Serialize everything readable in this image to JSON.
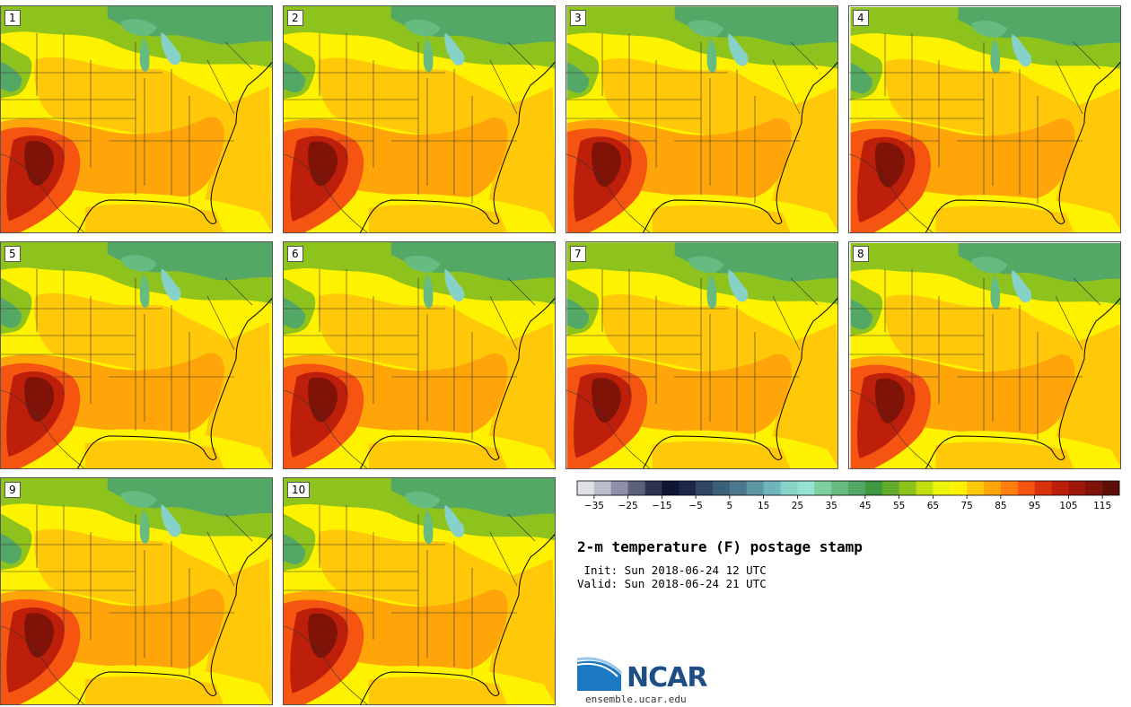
{
  "panels": [
    {
      "label": "1"
    },
    {
      "label": "2"
    },
    {
      "label": "3"
    },
    {
      "label": "4"
    },
    {
      "label": "5"
    },
    {
      "label": "6"
    },
    {
      "label": "7"
    },
    {
      "label": "8"
    },
    {
      "label": "9"
    },
    {
      "label": "10"
    }
  ],
  "colorbar": {
    "colors": [
      "#dfe1e6",
      "#b9bccb",
      "#8c8fa6",
      "#5b6078",
      "#2e3450",
      "#0d1530",
      "#1a2748",
      "#2f4763",
      "#3e5f79",
      "#4c7890",
      "#5d95a5",
      "#6fb5bb",
      "#86d1c8",
      "#96e2d2",
      "#7dcf9f",
      "#66bb80",
      "#53a866",
      "#3f9741",
      "#60ab2c",
      "#8ec21c",
      "#c2de11",
      "#eef20b",
      "#fff200",
      "#ffc90a",
      "#ffa50a",
      "#ff7f0a",
      "#f55411",
      "#db310e",
      "#bd1f0b",
      "#9e180a",
      "#7f1308",
      "#5b0f08"
    ],
    "tick_labels": [
      "−35",
      "−25",
      "−15",
      "−5",
      "5",
      "15",
      "25",
      "35",
      "45",
      "55",
      "65",
      "75",
      "85",
      "95",
      "105",
      "115"
    ],
    "vmin": -40,
    "vmax": 120
  },
  "title": "2-m temperature (F) postage stamp",
  "init_line": " Init: Sun 2018-06-24 12 UTC",
  "valid_line": "Valid: Sun 2018-06-24 21 UTC",
  "logo": {
    "text": "NCAR",
    "url": "ensemble.ucar.edu"
  }
}
